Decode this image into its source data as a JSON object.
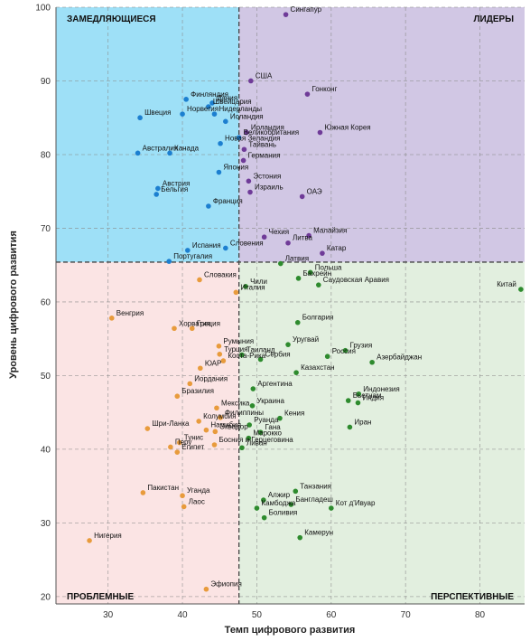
{
  "chart_data": {
    "type": "scatter",
    "xlabel": "Темп цифрового развития",
    "ylabel": "Уровень цифрового развития",
    "xlim": [
      23,
      86
    ],
    "ylim": [
      19,
      100
    ],
    "x_ticks": [
      30,
      40,
      50,
      60,
      70,
      80
    ],
    "y_ticks": [
      20,
      30,
      40,
      50,
      60,
      70,
      80,
      90,
      100
    ],
    "grid": true,
    "divider": {
      "x": 47.6,
      "y": 65.4
    },
    "quadrants": {
      "top_left": {
        "label": "ЗАМЕДЛЯЮЩИЕСЯ",
        "color": "#9ee0f7"
      },
      "top_right": {
        "label": "ЛИДЕРЫ",
        "color": "#d1c7e4"
      },
      "bottom_left": {
        "label": "ПРОБЛЕМНЫЕ",
        "color": "#fbe4e4"
      },
      "bottom_right": {
        "label": "ПЕРСПЕКТИВНЫЕ",
        "color": "#e2efdf"
      }
    },
    "series": [
      {
        "color": "#1c7fd0",
        "points": [
          {
            "label": "Финляндия",
            "x": 40.5,
            "y": 87.5
          },
          {
            "label": "Дания",
            "x": 44.0,
            "y": 87.0
          },
          {
            "label": "Норвегия",
            "x": 40.0,
            "y": 85.5
          },
          {
            "label": "Швейцария",
            "x": 43.5,
            "y": 86.5
          },
          {
            "label": "Швеция",
            "x": 34.3,
            "y": 85.0
          },
          {
            "label": "Нидерланды",
            "x": 44.3,
            "y": 85.5
          },
          {
            "label": "Исландия",
            "x": 45.8,
            "y": 84.5
          },
          {
            "label": "Великобритания",
            "x": 47.6,
            "y": 82.3
          },
          {
            "label": "Австралия",
            "x": 34.0,
            "y": 80.2
          },
          {
            "label": "Канада",
            "x": 38.3,
            "y": 80.2
          },
          {
            "label": "Новая Зеландия",
            "x": 45.1,
            "y": 81.5
          },
          {
            "label": "Япония",
            "x": 44.9,
            "y": 77.6
          },
          {
            "label": "Австрия",
            "x": 36.7,
            "y": 75.4
          },
          {
            "label": "Бельгия",
            "x": 36.5,
            "y": 74.6
          },
          {
            "label": "Франция",
            "x": 43.5,
            "y": 73.0
          },
          {
            "label": "Испания",
            "x": 40.7,
            "y": 67.0
          },
          {
            "label": "Словения",
            "x": 45.8,
            "y": 67.3
          },
          {
            "label": "Португалия",
            "x": 38.2,
            "y": 65.5
          }
        ]
      },
      {
        "color": "#6f3b98",
        "points": [
          {
            "label": "Сингапур",
            "x": 53.9,
            "y": 99.0
          },
          {
            "label": "США",
            "x": 49.2,
            "y": 90.0
          },
          {
            "label": "Гонконг",
            "x": 56.8,
            "y": 88.2
          },
          {
            "label": "Ирландия",
            "x": 48.6,
            "y": 83.0
          },
          {
            "label": "Южная Корея",
            "x": 58.5,
            "y": 83.0
          },
          {
            "label": "Тайвань",
            "x": 48.3,
            "y": 80.7
          },
          {
            "label": "Германия",
            "x": 48.2,
            "y": 79.2
          },
          {
            "label": "Эстония",
            "x": 48.9,
            "y": 76.4
          },
          {
            "label": "Израиль",
            "x": 49.1,
            "y": 74.9
          },
          {
            "label": "ОАЭ",
            "x": 56.1,
            "y": 74.3
          },
          {
            "label": "Чехия",
            "x": 51.0,
            "y": 68.8
          },
          {
            "label": "Малайзия",
            "x": 57.0,
            "y": 69.0
          },
          {
            "label": "Литва",
            "x": 54.2,
            "y": 68.0
          },
          {
            "label": "Катар",
            "x": 58.8,
            "y": 66.6
          }
        ]
      },
      {
        "color": "#e89b3c",
        "points": [
          {
            "label": "Словакия",
            "x": 42.3,
            "y": 63.0
          },
          {
            "label": "Италия",
            "x": 47.2,
            "y": 61.3
          },
          {
            "label": "Венгрия",
            "x": 30.5,
            "y": 57.8
          },
          {
            "label": "Хорватия",
            "x": 38.9,
            "y": 56.4
          },
          {
            "label": "Греция",
            "x": 41.3,
            "y": 56.4
          },
          {
            "label": "Румыния",
            "x": 44.9,
            "y": 54.0
          },
          {
            "label": "Турция",
            "x": 45.0,
            "y": 52.9
          },
          {
            "label": "Коста-Рика",
            "x": 45.5,
            "y": 52.0
          },
          {
            "label": "ЮАР",
            "x": 42.4,
            "y": 51.0
          },
          {
            "label": "Иордания",
            "x": 41.0,
            "y": 48.9
          },
          {
            "label": "Бразилия",
            "x": 39.3,
            "y": 47.2
          },
          {
            "label": "Мексика",
            "x": 44.6,
            "y": 45.6
          },
          {
            "label": "Филиппины",
            "x": 45.1,
            "y": 44.3
          },
          {
            "label": "Колумбия",
            "x": 42.2,
            "y": 43.8
          },
          {
            "label": "Шри-Ланка",
            "x": 35.3,
            "y": 42.8
          },
          {
            "label": "Намибия",
            "x": 43.2,
            "y": 42.6
          },
          {
            "label": "Эквадор",
            "x": 44.4,
            "y": 42.4
          },
          {
            "label": "Тунис",
            "x": 39.6,
            "y": 40.9
          },
          {
            "label": "Перу",
            "x": 38.4,
            "y": 40.3
          },
          {
            "label": "Египет",
            "x": 39.3,
            "y": 39.6
          },
          {
            "label": "Босния и Герцеговина",
            "x": 44.3,
            "y": 40.6
          },
          {
            "label": "Уганда",
            "x": 40.0,
            "y": 33.7
          },
          {
            "label": "Пакистан",
            "x": 34.7,
            "y": 34.1
          },
          {
            "label": "Лаос",
            "x": 40.2,
            "y": 32.2
          },
          {
            "label": "Нигерия",
            "x": 27.5,
            "y": 27.6
          },
          {
            "label": "Эфиопия",
            "x": 43.2,
            "y": 21.0
          }
        ]
      },
      {
        "color": "#2e8b2e",
        "points": [
          {
            "label": "Латвия",
            "x": 53.2,
            "y": 65.2
          },
          {
            "label": "Польша",
            "x": 57.2,
            "y": 64.0
          },
          {
            "label": "Чили",
            "x": 48.5,
            "y": 62.1
          },
          {
            "label": "Бахрейн",
            "x": 55.6,
            "y": 63.2
          },
          {
            "label": "Саудовская Аравия",
            "x": 58.3,
            "y": 62.3
          },
          {
            "label": "Китай",
            "x": 85.5,
            "y": 61.7
          },
          {
            "label": "Болгария",
            "x": 55.5,
            "y": 57.2
          },
          {
            "label": "Уругвай",
            "x": 54.2,
            "y": 54.2
          },
          {
            "label": "Грузия",
            "x": 61.9,
            "y": 53.4
          },
          {
            "label": "Таиланд",
            "x": 48.0,
            "y": 52.8
          },
          {
            "label": "Россия",
            "x": 59.5,
            "y": 52.6
          },
          {
            "label": "Азербайджан",
            "x": 65.5,
            "y": 51.8
          },
          {
            "label": "Сербия",
            "x": 50.5,
            "y": 52.2
          },
          {
            "label": "Казахстан",
            "x": 55.3,
            "y": 50.4
          },
          {
            "label": "Индонезия",
            "x": 63.7,
            "y": 47.5
          },
          {
            "label": "Аргентина",
            "x": 49.5,
            "y": 48.2
          },
          {
            "label": "Вьетнам",
            "x": 62.3,
            "y": 46.6
          },
          {
            "label": "Индия",
            "x": 63.6,
            "y": 46.3
          },
          {
            "label": "Украина",
            "x": 49.4,
            "y": 45.9
          },
          {
            "label": "Кения",
            "x": 53.1,
            "y": 44.2
          },
          {
            "label": "Руанда",
            "x": 49.0,
            "y": 43.3
          },
          {
            "label": "Иран",
            "x": 62.5,
            "y": 43.0
          },
          {
            "label": "Гана",
            "x": 50.5,
            "y": 42.3
          },
          {
            "label": "Марокко",
            "x": 48.9,
            "y": 41.5
          },
          {
            "label": "Ливан",
            "x": 48.0,
            "y": 40.2
          },
          {
            "label": "Танзания",
            "x": 55.2,
            "y": 34.3
          },
          {
            "label": "Алжир",
            "x": 50.9,
            "y": 33.1
          },
          {
            "label": "Кот д'Ивуар",
            "x": 60.0,
            "y": 32.0
          },
          {
            "label": "Бангладеш",
            "x": 54.6,
            "y": 32.5
          },
          {
            "label": "Камбоджа",
            "x": 50.0,
            "y": 32.0
          },
          {
            "label": "Боливия",
            "x": 51.0,
            "y": 30.7
          },
          {
            "label": "Камерун",
            "x": 55.8,
            "y": 28.0
          }
        ]
      }
    ]
  }
}
